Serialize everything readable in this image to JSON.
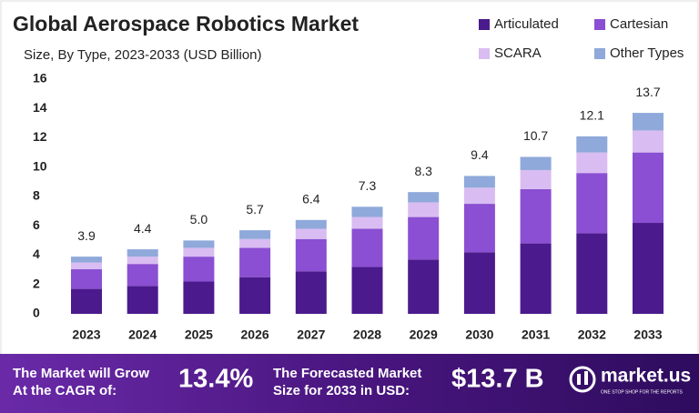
{
  "chart_data": {
    "type": "stacked_bar",
    "title": "Global Aerospace Robotics Market",
    "subtitle": "Size, By Type, 2023-2033 (USD Billion)",
    "categories": [
      "2023",
      "2024",
      "2025",
      "2026",
      "2027",
      "2028",
      "2029",
      "2030",
      "2031",
      "2032",
      "2033"
    ],
    "series": [
      {
        "name": "Articulated",
        "color": "#4b1a8c",
        "values": [
          1.7,
          1.9,
          2.2,
          2.5,
          2.9,
          3.2,
          3.7,
          4.2,
          4.8,
          5.5,
          6.2
        ]
      },
      {
        "name": "Cartesian",
        "color": "#8a4fd2",
        "values": [
          1.35,
          1.5,
          1.7,
          2.0,
          2.2,
          2.6,
          2.9,
          3.3,
          3.7,
          4.1,
          4.8
        ]
      },
      {
        "name": "SCARA",
        "color": "#d9bdf2",
        "values": [
          0.45,
          0.5,
          0.6,
          0.6,
          0.7,
          0.8,
          1.0,
          1.1,
          1.3,
          1.4,
          1.5
        ]
      },
      {
        "name": "Other Types",
        "color": "#8fa9da",
        "values": [
          0.4,
          0.5,
          0.5,
          0.6,
          0.6,
          0.7,
          0.7,
          0.8,
          0.9,
          1.1,
          1.2
        ]
      }
    ],
    "totals": [
      3.9,
      4.4,
      5.0,
      5.7,
      6.4,
      7.3,
      8.3,
      9.4,
      10.7,
      12.1,
      13.7
    ],
    "total_labels": [
      "3.9",
      "4.4",
      "5.0",
      "5.7",
      "6.4",
      "7.3",
      "8.3",
      "9.4",
      "10.7",
      "12.1",
      "13.7"
    ],
    "ylim": [
      0,
      16
    ],
    "yticks": [
      0,
      2,
      4,
      6,
      8,
      10,
      12,
      14,
      16
    ],
    "grid": false
  },
  "footer": {
    "cagr_text": [
      "The Market will Grow",
      "At the CAGR of:"
    ],
    "cagr_value": "13.4%",
    "forecast_text": [
      "The Forecasted Market",
      "Size for 2033 in USD:"
    ],
    "forecast_value": "$13.7 B",
    "brand": "market.us",
    "tagline": "ONE STOP SHOP FOR THE REPORTS"
  }
}
